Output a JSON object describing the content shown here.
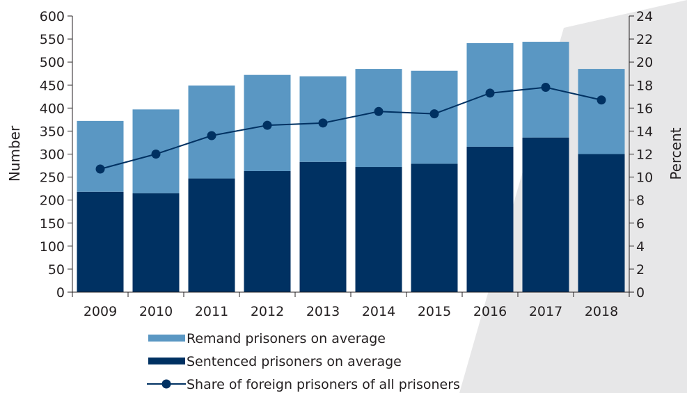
{
  "chart_data": {
    "type": "bar",
    "stacked": true,
    "categories": [
      "2009",
      "2010",
      "2011",
      "2012",
      "2013",
      "2014",
      "2015",
      "2016",
      "2017",
      "2018"
    ],
    "series": [
      {
        "name": "Sentenced prisoners on average",
        "kind": "bar",
        "axis": "left",
        "color": "#003162",
        "values": [
          218,
          215,
          247,
          263,
          283,
          272,
          279,
          316,
          336,
          300
        ]
      },
      {
        "name": "Remand prisoners on average",
        "kind": "bar",
        "axis": "left",
        "color": "#5a97c3",
        "values": [
          154,
          182,
          202,
          209,
          186,
          213,
          202,
          225,
          208,
          185
        ]
      },
      {
        "name": "Share of foreign prisoners of all prisoners",
        "kind": "line",
        "axis": "right",
        "color": "#003162",
        "values": [
          10.7,
          12.0,
          13.6,
          14.5,
          14.7,
          15.7,
          15.5,
          17.3,
          17.8,
          16.7
        ]
      }
    ],
    "ylabel": "Number",
    "ylim": [
      0,
      600
    ],
    "yticks": [
      "0",
      "50",
      "100",
      "150",
      "200",
      "250",
      "300",
      "350",
      "400",
      "450",
      "500",
      "550",
      "600"
    ],
    "y2label": "Percent",
    "y2lim": [
      0,
      24
    ],
    "y2ticks": [
      "0",
      "2",
      "4",
      "6",
      "8",
      "10",
      "12",
      "14",
      "16",
      "18",
      "20",
      "22",
      "24"
    ],
    "legend_position": "bottom",
    "legend_order": [
      "Remand prisoners on average",
      "Sentenced prisoners on average",
      "Share of foreign prisoners of all prisoners"
    ],
    "grid": false
  }
}
